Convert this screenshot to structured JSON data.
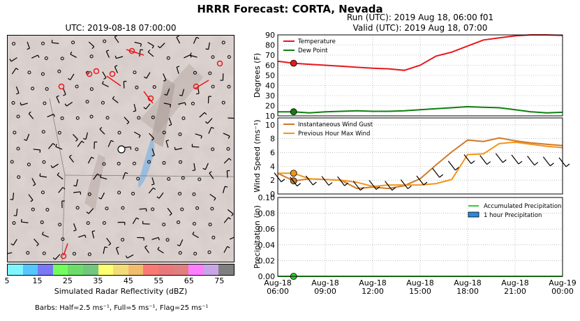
{
  "title": "HRRR Forecast: CORTA, Nevada",
  "map": {
    "title": "UTC: 2019-08-18 07:00:00",
    "colorbar": {
      "label": "Simulated Radar Reflectivity (dBZ)",
      "ticks": [
        "5",
        "15",
        "25",
        "35",
        "45",
        "55",
        "65",
        "75"
      ],
      "colors": [
        "#7ff5ff",
        "#55c6ff",
        "#7a78f4",
        "#72fd5f",
        "#6ddb6a",
        "#72c67d",
        "#fefe72",
        "#f2dc77",
        "#f1bc6e",
        "#fa7a73",
        "#e8787c",
        "#e07f7f",
        "#fd7ffe",
        "#c8a6e6",
        "#7f7f7f"
      ]
    },
    "barbs_note": "Barbs: Half=2.5 ms⁻¹, Full=5 ms⁻¹, Flag=25 ms⁻¹"
  },
  "run": {
    "line1": "Run (UTC): 2019 Aug 18, 06:00 f01",
    "line2": "Valid (UTC): 2019 Aug 18, 07:00"
  },
  "colors": {
    "temperature": "#e8171b",
    "dew_point": "#0e7f0e",
    "gust": "#cf7a2a",
    "max_wind": "#f49417",
    "accum_precip": "#2fcd2f",
    "hour_precip": "#2a88e0"
  },
  "chart_data": [
    {
      "type": "line",
      "ylabel": "Degrees (F)",
      "ylim": [
        10,
        90
      ],
      "yticks": [
        "10",
        "20",
        "30",
        "40",
        "50",
        "60",
        "70",
        "80",
        "90"
      ],
      "grid": true,
      "legend": "top-left",
      "x": [
        "06:00",
        "07:00",
        "08:00",
        "09:00",
        "10:00",
        "11:00",
        "12:00",
        "13:00",
        "14:00",
        "15:00",
        "16:00",
        "17:00",
        "18:00",
        "19:00",
        "20:00",
        "21:00",
        "22:00",
        "23:00",
        "00:00"
      ],
      "series": [
        {
          "name": "Temperature",
          "values": [
            64,
            62,
            61,
            60,
            59,
            58,
            57,
            56.5,
            55,
            60,
            69,
            73,
            79,
            85,
            87,
            89,
            90,
            90,
            89.5
          ]
        },
        {
          "name": "Dew Point",
          "values": [
            14,
            14,
            13,
            14,
            14.5,
            15,
            14.5,
            14.5,
            15,
            16,
            17,
            18,
            19,
            18.5,
            18,
            16,
            14,
            13,
            13.5
          ]
        }
      ],
      "marker_value_index": 1
    },
    {
      "type": "line",
      "ylabel": "Wind Speed",
      "ylabel_unit": "(ms⁻¹)",
      "ylim": [
        0,
        11
      ],
      "yticks": [
        "0",
        "2",
        "4",
        "6",
        "8",
        "10"
      ],
      "grid": true,
      "legend": "top-left",
      "x": [
        "06:00",
        "07:00",
        "08:00",
        "09:00",
        "10:00",
        "11:00",
        "12:00",
        "13:00",
        "14:00",
        "15:00",
        "16:00",
        "17:00",
        "18:00",
        "19:00",
        "20:00",
        "21:00",
        "22:00",
        "23:00",
        "00:00"
      ],
      "series": [
        {
          "name": "Instantaneous Wind Gust",
          "values": [
            3,
            1.9,
            2.2,
            2.1,
            2,
            0.8,
            1,
            0.8,
            1.2,
            2.2,
            4.2,
            6.1,
            7.8,
            7.6,
            8.1,
            7.7,
            7.4,
            7.2,
            7
          ]
        },
        {
          "name": "Previous Hour Max Wind",
          "values": [
            3,
            3,
            2.2,
            2.1,
            2,
            1.7,
            1.1,
            1.3,
            1.3,
            1.3,
            1.5,
            2.1,
            5.7,
            5.8,
            7.3,
            7.5,
            7.2,
            6.9,
            6.7
          ]
        }
      ],
      "marker_value_index": 1
    },
    {
      "type": "line",
      "ylabel": "Precipitation (in)",
      "ylim": [
        0,
        0.1
      ],
      "yticks": [
        "0.00",
        "0.02",
        "0.04",
        "0.06",
        "0.08",
        "0.10"
      ],
      "grid": true,
      "legend": "top-right",
      "x": [
        "06:00",
        "07:00",
        "08:00",
        "09:00",
        "10:00",
        "11:00",
        "12:00",
        "13:00",
        "14:00",
        "15:00",
        "16:00",
        "17:00",
        "18:00",
        "19:00",
        "20:00",
        "21:00",
        "22:00",
        "23:00",
        "00:00"
      ],
      "series": [
        {
          "name": "Accumulated Precipitation",
          "values": [
            0,
            0,
            0,
            0,
            0,
            0,
            0,
            0,
            0,
            0,
            0,
            0,
            0,
            0,
            0,
            0,
            0,
            0,
            0
          ]
        },
        {
          "name": "1 hour Precipitation",
          "values": [
            0,
            0,
            0,
            0,
            0,
            0,
            0,
            0,
            0,
            0,
            0,
            0,
            0,
            0,
            0,
            0,
            0,
            0,
            0
          ]
        }
      ],
      "marker_value_index": 1
    }
  ],
  "xaxis": {
    "ticks": [
      {
        "line1": "Aug-18",
        "line2": "06:00"
      },
      {
        "line1": "Aug-18",
        "line2": "09:00"
      },
      {
        "line1": "Aug-18",
        "line2": "12:00"
      },
      {
        "line1": "Aug-18",
        "line2": "15:00"
      },
      {
        "line1": "Aug-18",
        "line2": "18:00"
      },
      {
        "line1": "Aug-18",
        "line2": "21:00"
      },
      {
        "line1": "Aug-19",
        "line2": "00:00"
      }
    ]
  }
}
